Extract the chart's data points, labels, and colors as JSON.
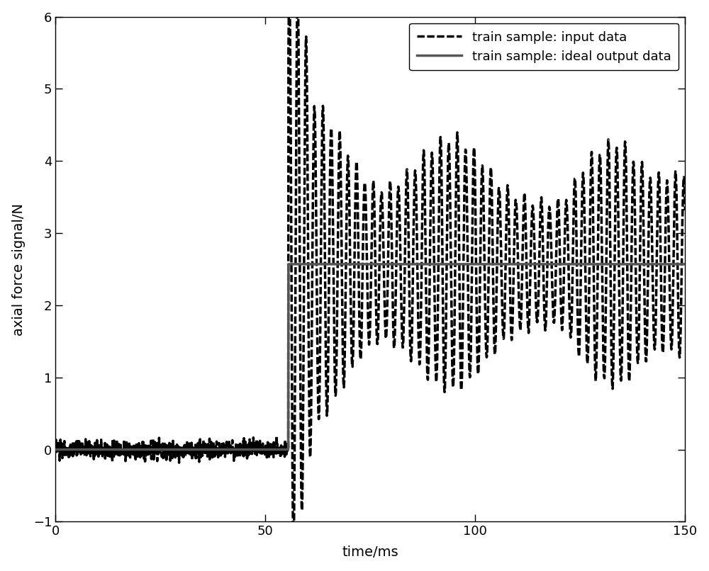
{
  "title": "",
  "xlabel": "time/ms",
  "ylabel": "axial force signal/N",
  "xlim": [
    0,
    150
  ],
  "ylim": [
    -1,
    6
  ],
  "yticks": [
    -1,
    0,
    1,
    2,
    3,
    4,
    5,
    6
  ],
  "xticks": [
    0,
    50,
    100,
    150
  ],
  "legend_labels": [
    "train sample: input data",
    "train sample: ideal output data"
  ],
  "input_color": "#000000",
  "output_color": "#555555",
  "background_color": "#ffffff",
  "noise_amplitude": 0.06,
  "step_time_ms": 55.5,
  "ideal_value": 2.57,
  "total_time_ms": 150,
  "sample_rate": 20000,
  "osc_freq_hz": 500,
  "figsize": [
    10.0,
    8.06
  ],
  "dpi": 100
}
